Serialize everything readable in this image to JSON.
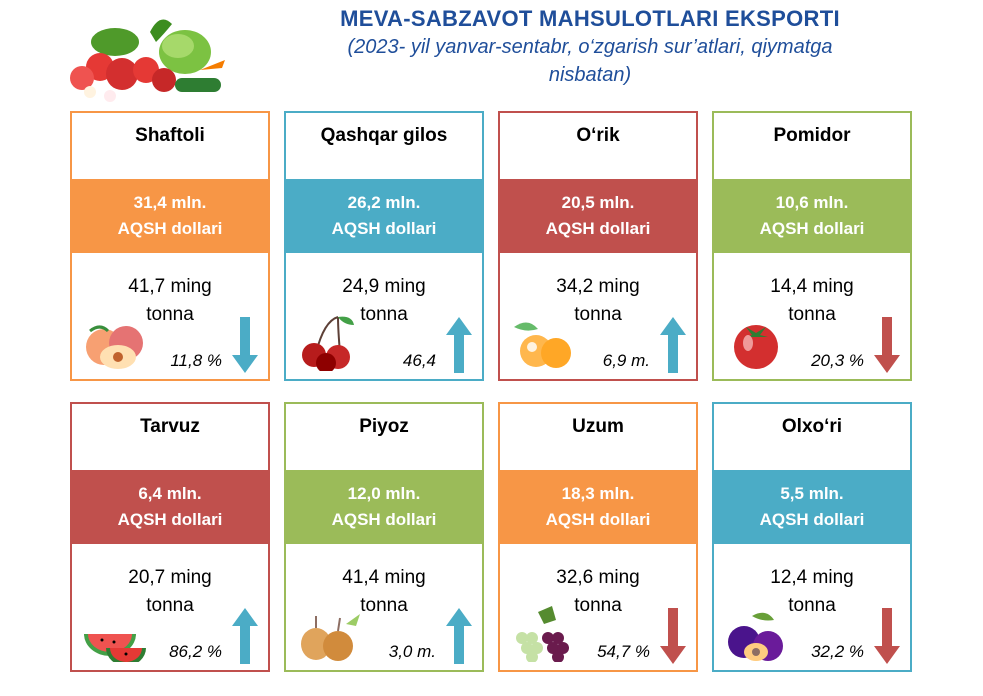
{
  "header": {
    "title": "MEVA-SABZAVOT MAHSULOTLARI EKSPORTI",
    "subtitle_line1": "(2023- yil yanvar-sentabr, o‘zgarish sur’atlari, qiymatga",
    "subtitle_line2": "nisbatan)"
  },
  "colors": {
    "orange": "#f79646",
    "blue": "#4bacc6",
    "red": "#c0504d",
    "green": "#9bbb59",
    "arrow_blue": "#4bacc6",
    "arrow_red": "#c0504d"
  },
  "cards": [
    {
      "name": "Shaftoli",
      "value": "31,4 mln.",
      "unit": "AQSH dollari",
      "vol1": "41,7 ming",
      "vol2": "tonna",
      "pct": "11,8 %",
      "trend": "down",
      "color": "orange",
      "arrow": "blue",
      "icon": "peach-icon"
    },
    {
      "name": "Qashqar gilos",
      "value": "26,2 mln.",
      "unit": "AQSH dollari",
      "vol1": "24,9 ming",
      "vol2": "tonna",
      "pct": "46,4",
      "trend": "up",
      "color": "blue",
      "arrow": "blue",
      "icon": "cherry-icon"
    },
    {
      "name": "O‘rik",
      "value": "20,5 mln.",
      "unit": "AQSH dollari",
      "vol1": "34,2 ming",
      "vol2": "tonna",
      "pct": "6,9  m.",
      "trend": "up",
      "color": "red",
      "arrow": "blue",
      "icon": "apricot-icon"
    },
    {
      "name": "Pomidor",
      "value": "10,6 mln.",
      "unit": "AQSH dollari",
      "vol1": "14,4 ming",
      "vol2": "tonna",
      "pct": "20,3 %",
      "trend": "down",
      "color": "green",
      "arrow": "red",
      "icon": "tomato-icon"
    },
    {
      "name": "Tarvuz",
      "value": "6,4 mln.",
      "unit": "AQSH dollari",
      "vol1": "20,7 ming",
      "vol2": "tonna",
      "pct": "86,2 %",
      "trend": "up",
      "color": "red",
      "arrow": "blue",
      "icon": "watermelon-icon"
    },
    {
      "name": "Piyoz",
      "value": "12,0 mln.",
      "unit": "AQSH dollari",
      "vol1": "41,4  ming",
      "vol2": "tonna",
      "pct": "3,0 m.",
      "trend": "up",
      "color": "green",
      "arrow": "blue",
      "icon": "onion-icon"
    },
    {
      "name": "Uzum",
      "value": "18,3 mln.",
      "unit": "AQSH dollari",
      "vol1": "32,6 ming",
      "vol2": "tonna",
      "pct": "54,7 %",
      "trend": "down",
      "color": "orange",
      "arrow": "red",
      "icon": "grapes-icon"
    },
    {
      "name": "Olxo‘ri",
      "value": "5,5 mln.",
      "unit": "AQSH dollari",
      "vol1": "12,4 ming",
      "vol2": "tonna",
      "pct": "32,2 %",
      "trend": "down",
      "color": "blue",
      "arrow": "red",
      "icon": "plum-icon"
    }
  ]
}
